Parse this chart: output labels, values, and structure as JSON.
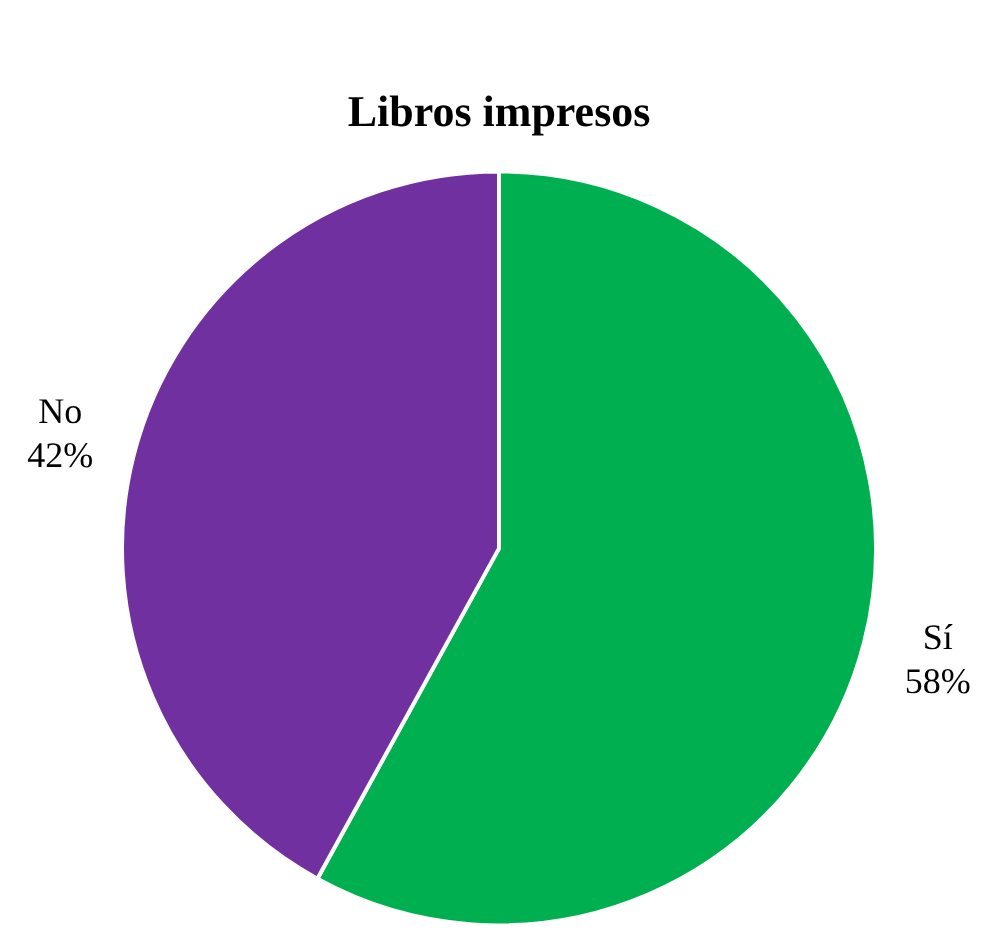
{
  "chart_data": {
    "type": "pie",
    "title": "Libros impresos",
    "categories": [
      "Sí",
      "No"
    ],
    "values": [
      58,
      42
    ],
    "colors": [
      "#00b050",
      "#7030a0"
    ],
    "value_labels": [
      "58%",
      "42%"
    ],
    "legend": false
  }
}
